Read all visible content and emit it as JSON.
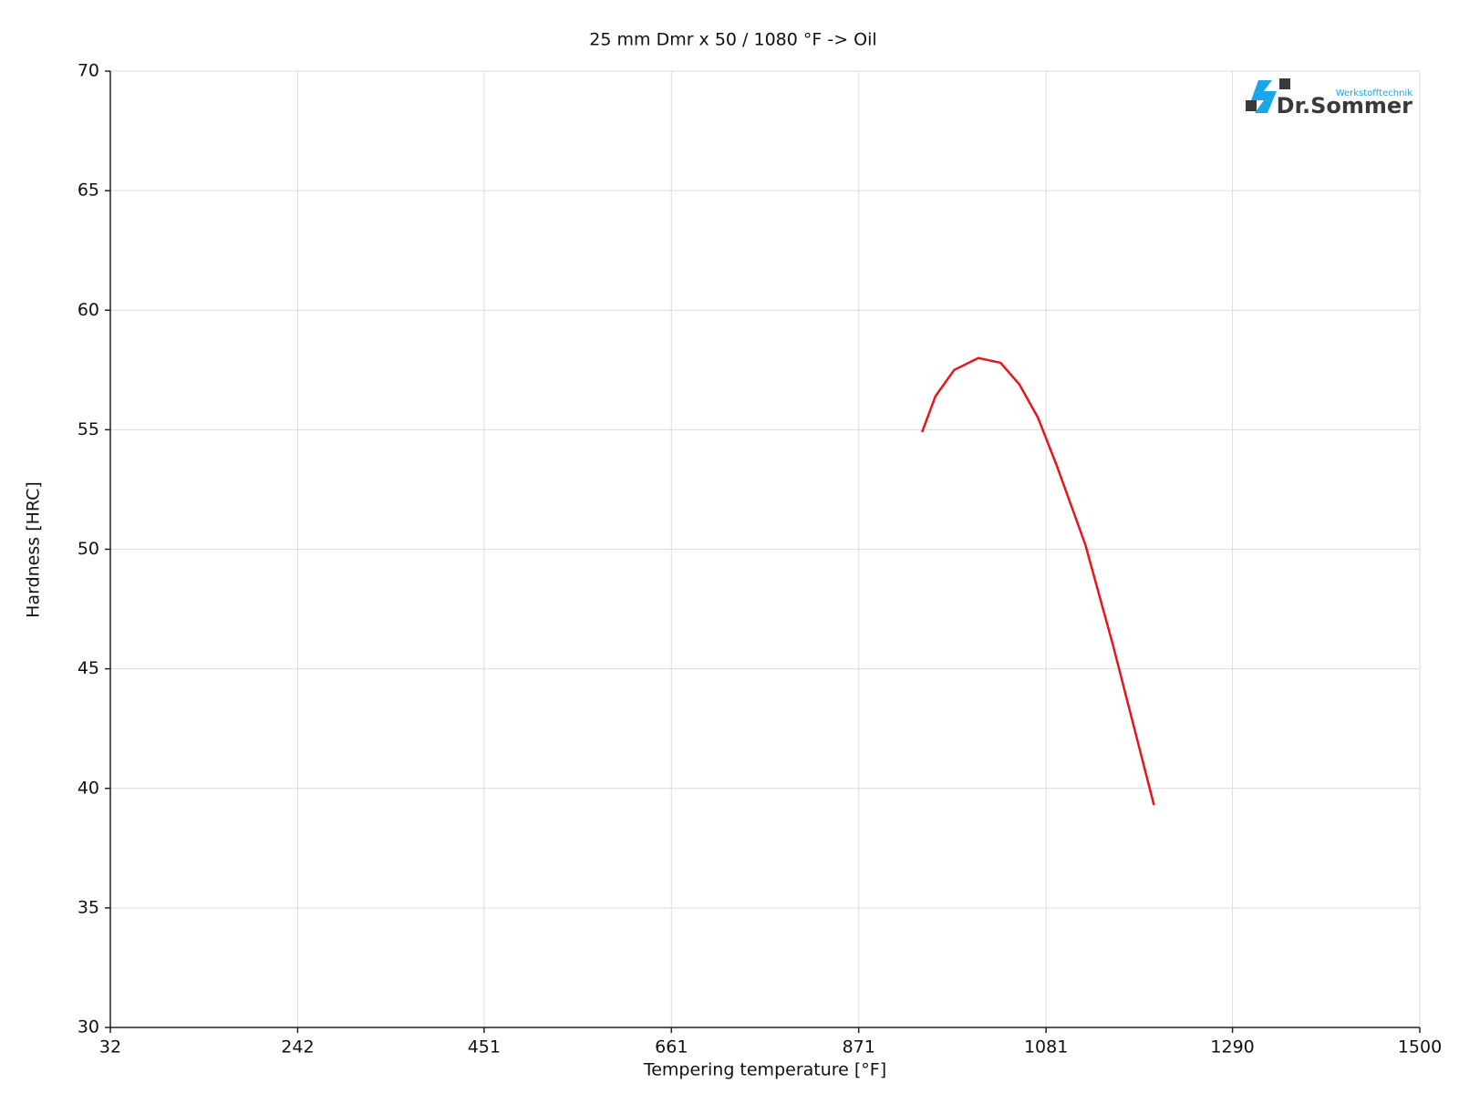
{
  "chart_data": {
    "type": "line",
    "title": "25 mm Dmr x 50 / 1080 °F -> Oil",
    "x_label": "Tempering temperature [°F]",
    "y_label": "Hardness [HRC]",
    "logo": {
      "subtitle": "Werkstofftechnik",
      "name": "Dr.Sommer"
    },
    "x": [
      942,
      957,
      978,
      1005,
      1030,
      1051,
      1072,
      1093,
      1125,
      1156,
      1202
    ],
    "series": [
      {
        "color": "#e8141b",
        "values": [
          54.9,
          56.4,
          57.5,
          58.0,
          57.8,
          56.9,
          55.5,
          53.5,
          50.2,
          46.0,
          39.3
        ]
      }
    ],
    "xlim": [
      32,
      1500
    ],
    "xticks": [
      32,
      242,
      451,
      661,
      871,
      1081,
      1290,
      1500
    ],
    "ylim": [
      30,
      70
    ],
    "yticks": [
      30,
      35,
      40,
      45,
      50,
      55,
      60,
      65,
      70
    ],
    "grid": true
  }
}
